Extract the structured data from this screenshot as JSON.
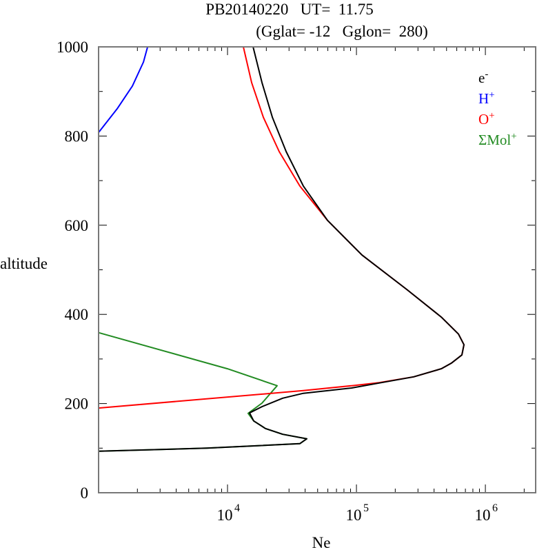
{
  "chart_data": {
    "type": "line",
    "title_line1": "PB20140220   UT=  11.75",
    "title_line2": "(Gglat= -12   Gglon=  280)",
    "xlabel": "Ne",
    "ylabel": "altitude",
    "xscale": "log",
    "xlim_log10": [
      3.0,
      6.39
    ],
    "ylim": [
      0,
      1000
    ],
    "yticks": [
      0,
      200,
      400,
      600,
      800,
      1000
    ],
    "ytick_labels": [
      "0",
      "200",
      "400",
      "600",
      "800",
      "1000"
    ],
    "xticks": [
      {
        "base": "10",
        "exp": "4",
        "value": 10000
      },
      {
        "base": "10",
        "exp": "5",
        "value": 100000
      },
      {
        "base": "10",
        "exp": "6",
        "value": 1000000
      }
    ],
    "legend_position": "top-right",
    "series": [
      {
        "name": "e",
        "sup": "-",
        "color": "#000000",
        "points_log10N_alt": [
          [
            4.198,
            1000
          ],
          [
            4.267,
            920
          ],
          [
            4.348,
            842
          ],
          [
            4.455,
            765
          ],
          [
            4.588,
            688
          ],
          [
            4.775,
            611
          ],
          [
            5.043,
            533
          ],
          [
            5.39,
            456
          ],
          [
            5.658,
            394
          ],
          [
            5.791,
            356
          ],
          [
            5.834,
            332
          ],
          [
            5.818,
            309
          ],
          [
            5.738,
            291
          ],
          [
            5.658,
            278
          ],
          [
            5.444,
            260
          ],
          [
            5.176,
            246
          ],
          [
            4.963,
            235
          ],
          [
            4.588,
            223
          ],
          [
            4.428,
            212
          ],
          [
            4.267,
            193
          ],
          [
            4.171,
            179
          ],
          [
            4.203,
            161
          ],
          [
            4.294,
            144
          ],
          [
            4.428,
            131
          ],
          [
            4.615,
            121
          ],
          [
            4.561,
            110
          ],
          [
            3.84,
            100
          ],
          [
            3.0,
            93
          ]
        ]
      },
      {
        "name": "H",
        "sup": "+",
        "color": "#0000ff",
        "points_log10N_alt": [
          [
            3.38,
            1000
          ],
          [
            3.348,
            966
          ],
          [
            3.262,
            912
          ],
          [
            3.144,
            861
          ],
          [
            3.0,
            808
          ]
        ]
      },
      {
        "name": "O",
        "sup": "+",
        "color": "#ff0000",
        "points_log10N_alt": [
          [
            4.123,
            1000
          ],
          [
            4.187,
            920
          ],
          [
            4.278,
            842
          ],
          [
            4.401,
            765
          ],
          [
            4.561,
            688
          ],
          [
            4.775,
            611
          ],
          [
            5.043,
            533
          ],
          [
            5.39,
            456
          ],
          [
            5.658,
            394
          ],
          [
            5.791,
            356
          ],
          [
            5.834,
            332
          ],
          [
            5.818,
            309
          ],
          [
            5.738,
            291
          ],
          [
            5.658,
            278
          ],
          [
            5.444,
            260
          ],
          [
            5.176,
            247
          ],
          [
            4.963,
            240
          ],
          [
            4.588,
            229
          ],
          [
            3.0,
            190
          ]
        ]
      },
      {
        "name": "ΣMol",
        "sup": "+",
        "color": "#228b22",
        "points_log10N_alt": [
          [
            3.0,
            359
          ],
          [
            4.0,
            278
          ],
          [
            4.385,
            240
          ],
          [
            4.267,
            201
          ],
          [
            4.16,
            178
          ],
          [
            4.203,
            161
          ],
          [
            4.294,
            144
          ],
          [
            4.428,
            131
          ],
          [
            4.615,
            121
          ],
          [
            4.561,
            110
          ],
          [
            3.84,
            100
          ],
          [
            3.0,
            93
          ]
        ]
      }
    ]
  }
}
